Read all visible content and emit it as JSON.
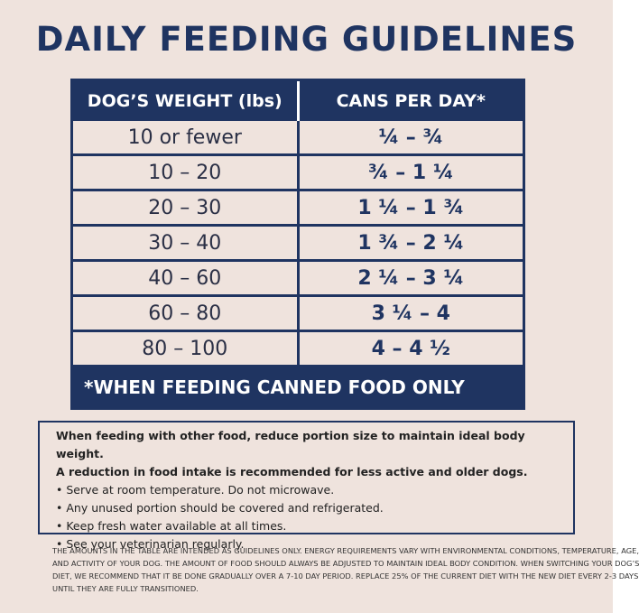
{
  "header": {
    "title": "DAILY FEEDING GUIDELINES"
  },
  "table": {
    "columns": [
      "DOG’S WEIGHT (lbs)",
      "CANS PER DAY*"
    ],
    "rows": [
      [
        "10 or fewer",
        "¼ – ¾"
      ],
      [
        "10 – 20",
        "¾ – 1 ¼"
      ],
      [
        "20 – 30",
        "1 ¼ – 1 ¾"
      ],
      [
        "30 – 40",
        "1 ¾ – 2 ¼"
      ],
      [
        "40 – 60",
        "2 ¼ – 3 ¼"
      ],
      [
        "60 – 80",
        "3 ¼ – 4"
      ],
      [
        "80 – 100",
        "4 – 4 ½"
      ]
    ],
    "footnote": "*WHEN FEEDING CANNED FOOD ONLY"
  },
  "notes": {
    "intro": [
      "When feeding with other food, reduce portion size to maintain ideal body weight.",
      "A reduction in food intake is recommended for less active and older dogs."
    ],
    "bullets": [
      "Serve at room temperature. Do not microwave.",
      "Any unused portion should be covered and refrigerated.",
      "Keep fresh water available at all times.",
      "See your veterinarian regularly."
    ]
  },
  "fine_print": [
    "THE AMOUNTS IN THE TABLE ARE INTENDED AS GUIDELINES ONLY. ENERGY REQUIREMENTS VARY WITH ENVIRONMENTAL CONDITIONS, TEMPERATURE, AGE,",
    "AND ACTIVITY OF YOUR DOG. THE AMOUNT OF FOOD SHOULD ALWAYS BE ADJUSTED TO MAINTAIN IDEAL BODY CONDITION. WHEN SWITCHING YOUR DOG’S",
    "DIET, WE RECOMMEND THAT IT BE DONE GRADUALLY OVER A 7-10 DAY PERIOD. REPLACE 25% OF THE CURRENT DIET WITH THE NEW DIET EVERY 2-3 DAYS",
    "UNTIL THEY ARE FULLY TRANSITIONED."
  ]
}
